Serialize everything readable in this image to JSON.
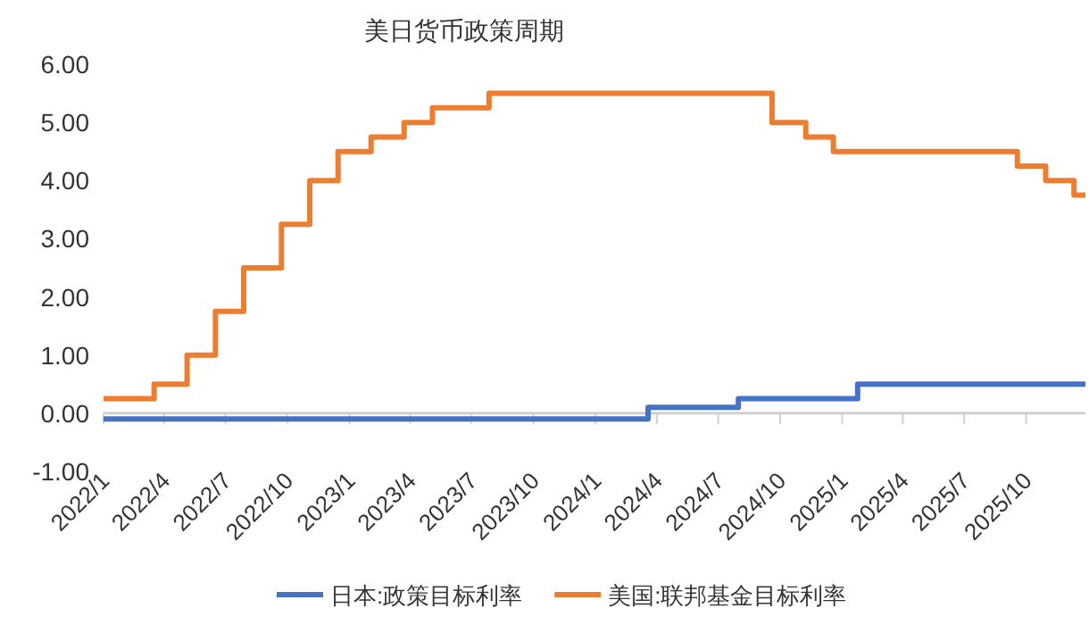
{
  "chart_data": {
    "type": "step",
    "title": "美日货币政策周期",
    "xlim": [
      "2022-01-01",
      "2025-12-28"
    ],
    "xticks": [
      {
        "value": "2022-01-01",
        "label": "2022/1"
      },
      {
        "value": "2022-04-01",
        "label": "2022/4"
      },
      {
        "value": "2022-07-01",
        "label": "2022/7"
      },
      {
        "value": "2022-10-01",
        "label": "2022/10"
      },
      {
        "value": "2023-01-01",
        "label": "2023/1"
      },
      {
        "value": "2023-04-01",
        "label": "2023/4"
      },
      {
        "value": "2023-07-01",
        "label": "2023/7"
      },
      {
        "value": "2023-10-01",
        "label": "2023/10"
      },
      {
        "value": "2024-01-01",
        "label": "2024/1"
      },
      {
        "value": "2024-04-01",
        "label": "2024/4"
      },
      {
        "value": "2024-07-01",
        "label": "2024/7"
      },
      {
        "value": "2024-10-01",
        "label": "2024/10"
      },
      {
        "value": "2025-01-01",
        "label": "2025/1"
      },
      {
        "value": "2025-04-01",
        "label": "2025/4"
      },
      {
        "value": "2025-07-01",
        "label": "2025/7"
      },
      {
        "value": "2025-10-01",
        "label": "2025/10"
      }
    ],
    "ylim": [
      -1,
      6
    ],
    "yticks": [
      {
        "value": -1,
        "label": "-1.00"
      },
      {
        "value": 0,
        "label": "0.00"
      },
      {
        "value": 1,
        "label": "1.00"
      },
      {
        "value": 2,
        "label": "2.00"
      },
      {
        "value": 3,
        "label": "3.00"
      },
      {
        "value": 4,
        "label": "4.00"
      },
      {
        "value": 5,
        "label": "5.00"
      },
      {
        "value": 6,
        "label": "6.00"
      }
    ],
    "grid": false,
    "legend": "bottom",
    "series": [
      {
        "name": "日本:政策目标利率",
        "color": "#4472c4",
        "x": [
          "2022-01-01",
          "2024-03-19",
          "2024-07-31",
          "2025-01-24",
          "2025-12-28"
        ],
        "values": [
          -0.1,
          0.1,
          0.25,
          0.5,
          0.5
        ]
      },
      {
        "name": "美国:联邦基金目标利率",
        "color": "#ed7d31",
        "x": [
          "2022-01-01",
          "2022-03-17",
          "2022-05-05",
          "2022-06-16",
          "2022-07-28",
          "2022-09-22",
          "2022-11-03",
          "2022-12-15",
          "2023-02-02",
          "2023-03-23",
          "2023-05-04",
          "2023-07-27",
          "2024-09-19",
          "2024-11-08",
          "2024-12-19",
          "2025-09-18",
          "2025-10-30",
          "2025-12-11",
          "2025-12-28"
        ],
        "values": [
          0.25,
          0.5,
          1.0,
          1.75,
          2.5,
          3.25,
          4.0,
          4.5,
          4.75,
          5.0,
          5.25,
          5.5,
          5.0,
          4.75,
          4.5,
          4.25,
          4.0,
          3.75,
          3.75
        ]
      }
    ]
  }
}
